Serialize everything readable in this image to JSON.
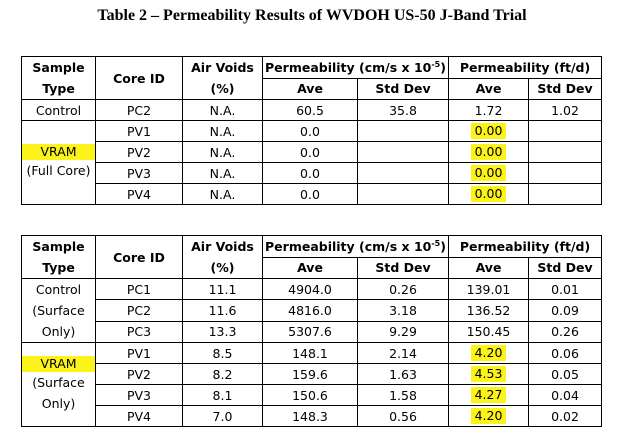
{
  "title": "Table 2 – Permeability Results of WVDOH US-50 J-Band Trial",
  "header": {
    "sample_type_line1": "Sample",
    "sample_type_line2": "Type",
    "core_id": "Core ID",
    "air_voids_line1": "Air Voids",
    "air_voids_line2": "(%)",
    "perm_cms_prefix": "Permeability (cm/s x 10",
    "perm_cms_exp": "-5",
    "perm_cms_suffix": ")",
    "perm_ftd": "Permeability (ft/d)",
    "ave": "Ave",
    "std_dev": "Std Dev"
  },
  "table1": {
    "groups": {
      "control": "Control",
      "vram_line1": "VRAM",
      "vram_line2": "(Full Core)"
    },
    "rows": [
      {
        "core_id": "PC2",
        "air_voids": "N.A.",
        "cms_ave": "60.5",
        "cms_std": "35.8",
        "ftd_ave": "1.72",
        "ftd_std": "1.02"
      },
      {
        "core_id": "PV1",
        "air_voids": "N.A.",
        "cms_ave": "0.0",
        "cms_std": "",
        "ftd_ave": "0.00",
        "ftd_std": ""
      },
      {
        "core_id": "PV2",
        "air_voids": "N.A.",
        "cms_ave": "0.0",
        "cms_std": "",
        "ftd_ave": "0.00",
        "ftd_std": ""
      },
      {
        "core_id": "PV3",
        "air_voids": "N.A.",
        "cms_ave": "0.0",
        "cms_std": "",
        "ftd_ave": "0.00",
        "ftd_std": ""
      },
      {
        "core_id": "PV4",
        "air_voids": "N.A.",
        "cms_ave": "0.0",
        "cms_std": "",
        "ftd_ave": "0.00",
        "ftd_std": ""
      }
    ]
  },
  "table2": {
    "groups": {
      "control_line1": "Control",
      "control_line2": "(Surface",
      "control_line3": "Only)",
      "vram_line1": "VRAM",
      "vram_line2": "(Surface",
      "vram_line3": "Only)"
    },
    "rows": [
      {
        "core_id": "PC1",
        "air_voids": "11.1",
        "cms_ave": "4904.0",
        "cms_std": "0.26",
        "ftd_ave": "139.01",
        "ftd_std": "0.01"
      },
      {
        "core_id": "PC2",
        "air_voids": "11.6",
        "cms_ave": "4816.0",
        "cms_std": "3.18",
        "ftd_ave": "136.52",
        "ftd_std": "0.09"
      },
      {
        "core_id": "PC3",
        "air_voids": "13.3",
        "cms_ave": "5307.6",
        "cms_std": "9.29",
        "ftd_ave": "150.45",
        "ftd_std": "0.26"
      },
      {
        "core_id": "PV1",
        "air_voids": "8.5",
        "cms_ave": "148.1",
        "cms_std": "2.14",
        "ftd_ave": "4.20",
        "ftd_std": "0.06"
      },
      {
        "core_id": "PV2",
        "air_voids": "8.2",
        "cms_ave": "159.6",
        "cms_std": "1.63",
        "ftd_ave": "4.53",
        "ftd_std": "0.05"
      },
      {
        "core_id": "PV3",
        "air_voids": "8.1",
        "cms_ave": "150.6",
        "cms_std": "1.58",
        "ftd_ave": "4.27",
        "ftd_std": "0.04"
      },
      {
        "core_id": "PV4",
        "air_voids": "7.0",
        "cms_ave": "148.3",
        "cms_std": "0.56",
        "ftd_ave": "4.20",
        "ftd_std": "0.02"
      }
    ]
  },
  "highlight_color": "#fbf319"
}
